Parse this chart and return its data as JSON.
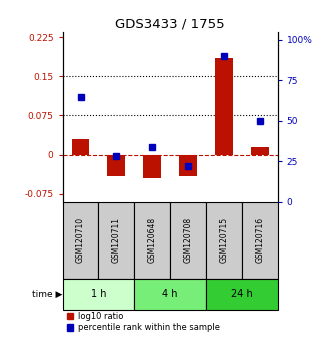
{
  "title": "GDS3433 / 1755",
  "samples": [
    "GSM120710",
    "GSM120711",
    "GSM120648",
    "GSM120708",
    "GSM120715",
    "GSM120716"
  ],
  "log10_ratio": [
    0.03,
    -0.04,
    -0.045,
    -0.04,
    0.185,
    0.015
  ],
  "percentile_rank": [
    65,
    28,
    34,
    22,
    90,
    50
  ],
  "ylim_left": [
    -0.09,
    0.235
  ],
  "ylim_right": [
    0,
    105
  ],
  "yticks_left": [
    -0.075,
    0,
    0.075,
    0.15,
    0.225
  ],
  "yticks_right": [
    0,
    25,
    50,
    75,
    100
  ],
  "ytick_labels_left": [
    "-0.075",
    "0",
    "0.075",
    "0.15",
    "0.225"
  ],
  "ytick_labels_right": [
    "0",
    "25",
    "50",
    "75",
    "100%"
  ],
  "hlines": [
    0.075,
    0.15
  ],
  "bar_color_red": "#bb1100",
  "bar_color_blue": "#0000bb",
  "bar_width": 0.5,
  "marker_size": 5,
  "bg_label": "#cccccc",
  "bg_time_1h": "#ccffcc",
  "bg_time_4h": "#77ee77",
  "bg_time_24h": "#33cc33",
  "time_labels": [
    [
      "1 h",
      0,
      1
    ],
    [
      "4 h",
      2,
      3
    ],
    [
      "24 h",
      4,
      5
    ]
  ],
  "legend_labels": [
    "log10 ratio",
    "percentile rank within the sample"
  ]
}
